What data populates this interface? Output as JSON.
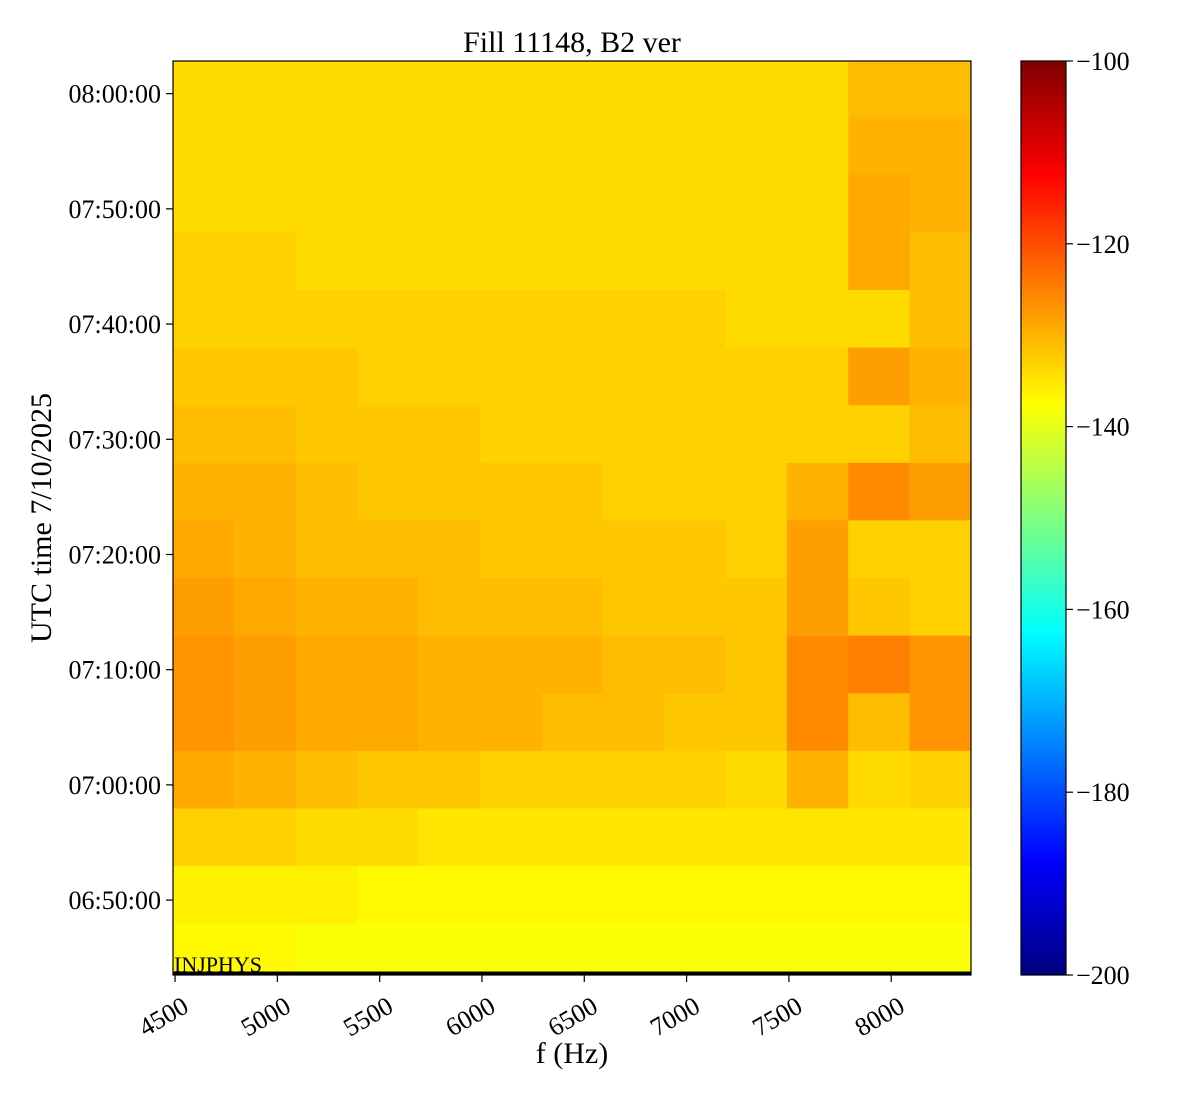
{
  "chart_data": {
    "type": "heatmap",
    "title": "Fill 11148, B2 ver",
    "x_label": "f (Hz)",
    "y_label": "UTC time 7/10/2025",
    "annotation": "INJPHYS",
    "colormap": "jet",
    "x": [
      4640,
      4940,
      5240,
      5540,
      5840,
      6140,
      6440,
      6740,
      7040,
      7340,
      7640,
      7940,
      8240
    ],
    "y": [
      "06:45:30",
      "06:50:30",
      "06:55:30",
      "07:00:30",
      "07:05:30",
      "07:10:30",
      "07:15:30",
      "07:20:30",
      "07:25:30",
      "07:30:30",
      "07:35:30",
      "07:40:30",
      "07:45:30",
      "07:50:30",
      "07:55:30",
      "08:00:30"
    ],
    "z": [
      [
        -137,
        -137,
        -138,
        -138,
        -138,
        -138,
        -138,
        -138,
        -138,
        -138,
        -138,
        -138,
        -138
      ],
      [
        -136,
        -136,
        -136,
        -137,
        -137,
        -137,
        -137,
        -137,
        -137,
        -137,
        -137,
        -137,
        -137
      ],
      [
        -133,
        -133,
        -134,
        -134,
        -135,
        -135,
        -135,
        -135,
        -135,
        -135,
        -135,
        -135,
        -135
      ],
      [
        -129,
        -130,
        -131,
        -132,
        -132,
        -133,
        -133,
        -133,
        -133,
        -134,
        -130,
        -134,
        -133
      ],
      [
        -127,
        -128,
        -129,
        -129,
        -130,
        -130,
        -131,
        -131,
        -132,
        -132,
        -126,
        -131,
        -127
      ],
      [
        -127,
        -128,
        -129,
        -129,
        -130,
        -130,
        -130,
        -131,
        -131,
        -132,
        -126,
        -125,
        -127
      ],
      [
        -128,
        -129,
        -130,
        -130,
        -131,
        -131,
        -131,
        -132,
        -132,
        -132,
        -128,
        -132,
        -133
      ],
      [
        -129,
        -130,
        -131,
        -131,
        -131,
        -132,
        -132,
        -132,
        -132,
        -133,
        -128,
        -133,
        -133
      ],
      [
        -130,
        -130,
        -131,
        -132,
        -132,
        -132,
        -132,
        -133,
        -133,
        -133,
        -130,
        -126,
        -128
      ],
      [
        -131,
        -131,
        -132,
        -132,
        -132,
        -133,
        -133,
        -133,
        -133,
        -133,
        -133,
        -133,
        -131
      ],
      [
        -132,
        -132,
        -132,
        -133,
        -133,
        -133,
        -133,
        -133,
        -133,
        -133,
        -133,
        -128,
        -130
      ],
      [
        -133,
        -133,
        -133,
        -133,
        -133,
        -133,
        -133,
        -133,
        -133,
        -134,
        -134,
        -134,
        -131
      ],
      [
        -133,
        -133,
        -134,
        -134,
        -134,
        -134,
        -134,
        -134,
        -134,
        -134,
        -134,
        -129,
        -131
      ],
      [
        -134,
        -134,
        -134,
        -134,
        -134,
        -134,
        -134,
        -134,
        -134,
        -134,
        -134,
        -129,
        -130
      ],
      [
        -134,
        -134,
        -134,
        -134,
        -134,
        -134,
        -134,
        -134,
        -134,
        -134,
        -134,
        -130,
        -130
      ],
      [
        -134,
        -134,
        -134,
        -134,
        -134,
        -134,
        -134,
        -134,
        -134,
        -134,
        -134,
        -131,
        -131
      ]
    ],
    "xlim": [
      4490,
      8390
    ],
    "xticks": [
      4500,
      5000,
      5500,
      6000,
      6500,
      7000,
      7500,
      8000
    ],
    "ylim": [
      "06:43:30",
      "08:02:50"
    ],
    "yticks": [
      "06:50:00",
      "07:00:00",
      "07:10:00",
      "07:20:00",
      "07:30:00",
      "07:40:00",
      "07:50:00",
      "08:00:00"
    ],
    "zlim": [
      -200,
      -100
    ],
    "zticks": [
      {
        "value": -200,
        "label": "−200"
      },
      {
        "value": -180,
        "label": "−180"
      },
      {
        "value": -160,
        "label": "−160"
      },
      {
        "value": -140,
        "label": "−140"
      },
      {
        "value": -120,
        "label": "−120"
      },
      {
        "value": -100,
        "label": "−100"
      }
    ]
  }
}
